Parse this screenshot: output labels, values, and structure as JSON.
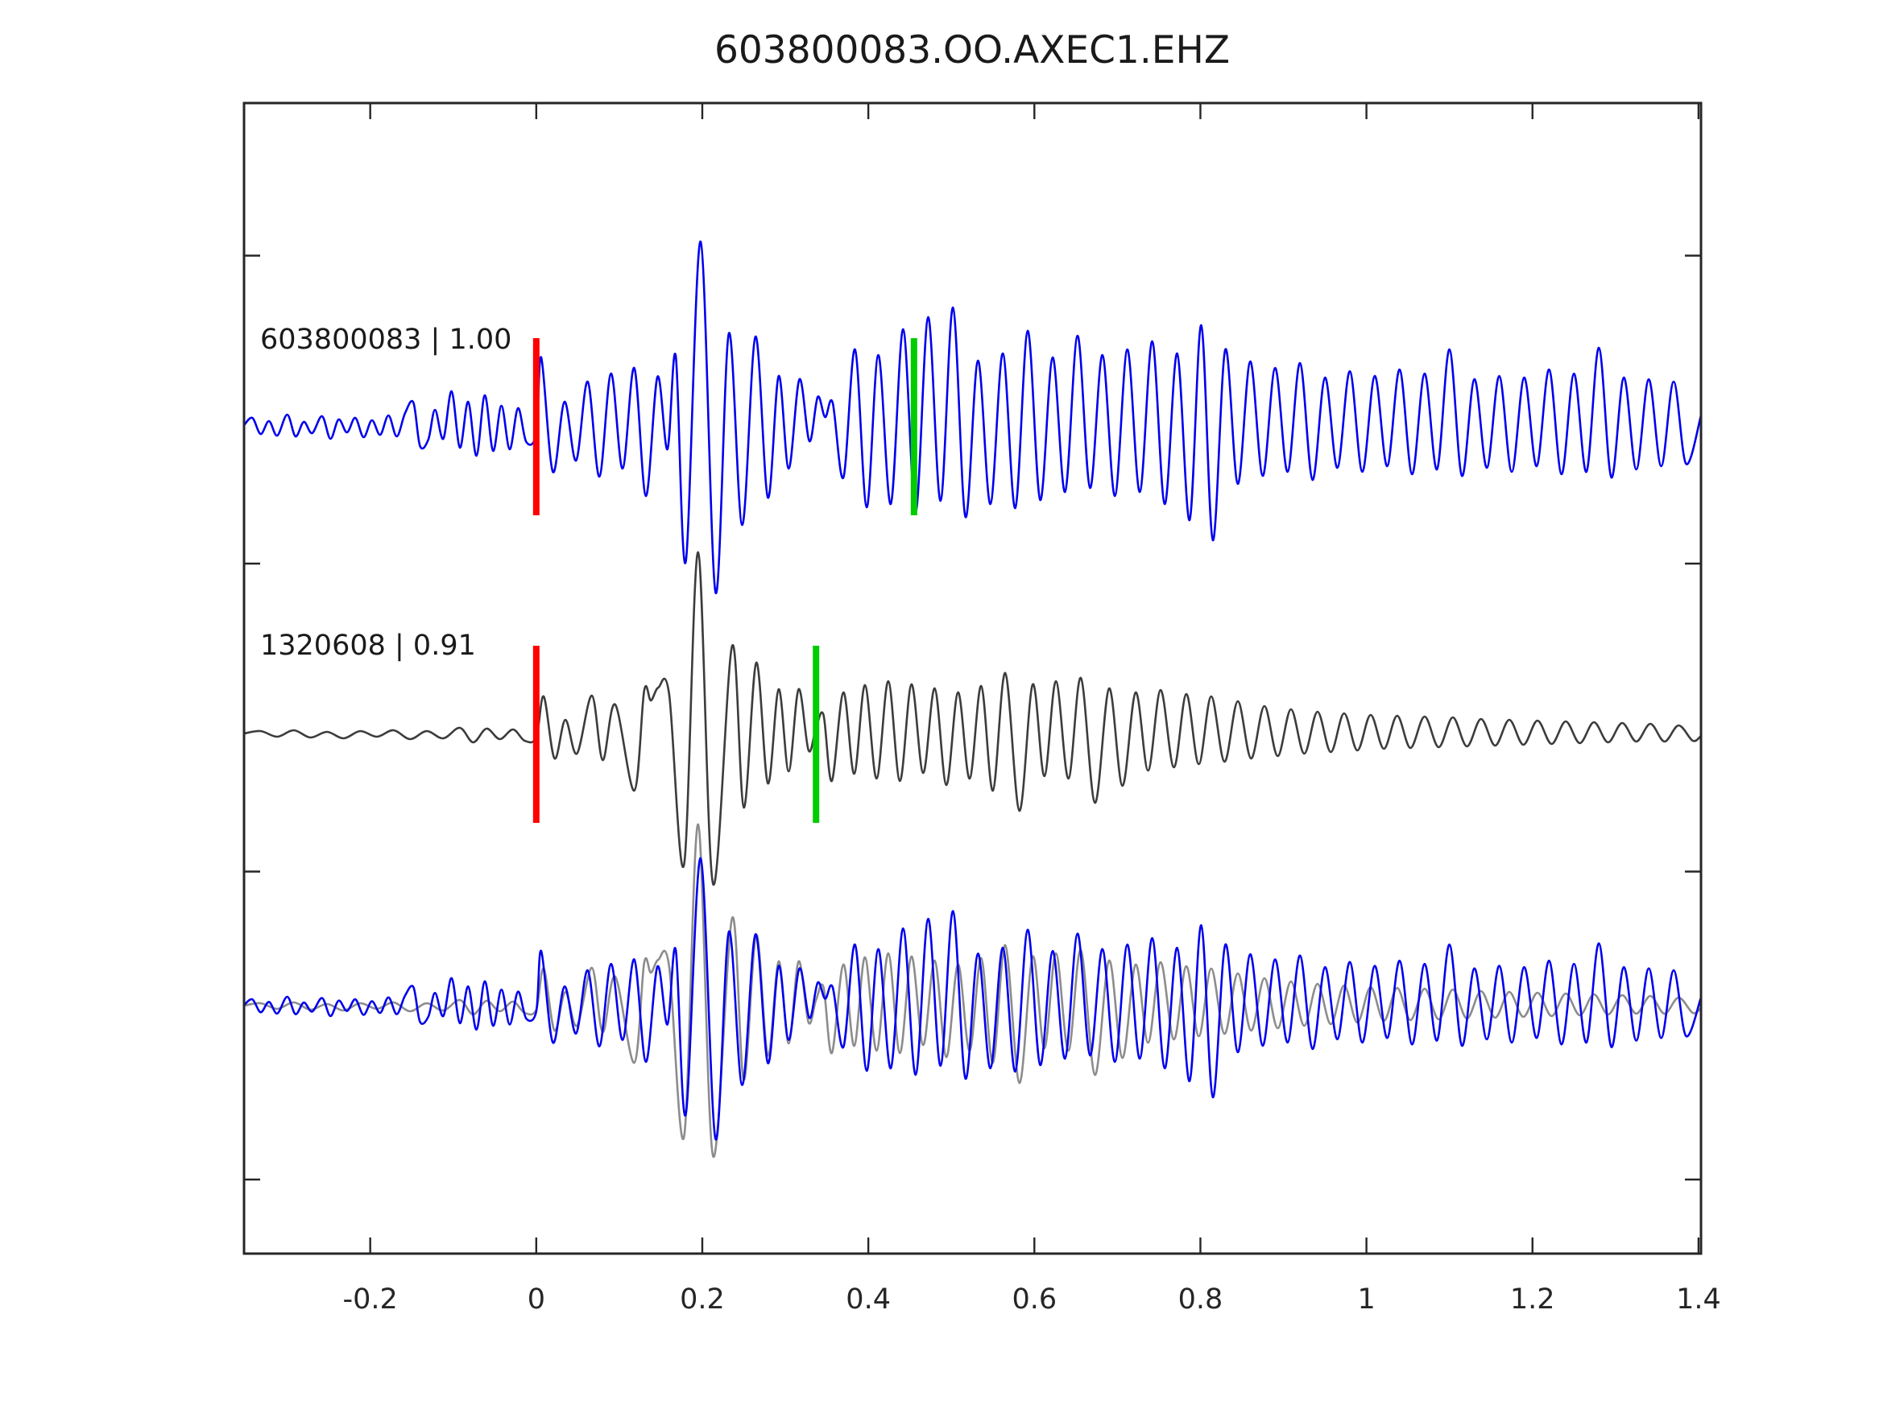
{
  "title": "603800083.OO.AXEC1.EHZ",
  "chart_data": {
    "type": "line",
    "title": "603800083.OO.AXEC1.EHZ",
    "xlabel": "",
    "ylabel": "",
    "xlim": [
      -0.352,
      1.403
    ],
    "x_ticks": [
      -0.2,
      0,
      0.2,
      0.4,
      0.6,
      0.8,
      1,
      1.2,
      1.4
    ],
    "x_tick_labels": [
      "-0.2",
      "0",
      "0.2",
      "0.4",
      "0.6",
      "0.8",
      "1",
      "1.2",
      "1.4"
    ],
    "y_tick_labels": [],
    "y_ticks_unlabeled_count": 4,
    "grid": false,
    "legend": "none",
    "tick_direction": "in",
    "background_color": "#ffffff",
    "axis_color": "#262626",
    "panels": [
      {
        "name": "template-panel",
        "label": "603800083 | 1.00",
        "trace": "template",
        "trace_color": "#0000ee",
        "scale": 1.0,
        "picks": [
          {
            "name": "red-pick",
            "x": 0.0,
            "color": "#ff0000"
          },
          {
            "name": "green-pick",
            "x": 0.455,
            "color": "#00cc00"
          }
        ]
      },
      {
        "name": "detection-panel",
        "label": "1320608 | 0.91",
        "trace": "detection",
        "trace_color": "#3c3c3c",
        "scale": 1.0,
        "picks": [
          {
            "name": "red-pick",
            "x": 0.0,
            "color": "#ff0000"
          },
          {
            "name": "green-pick",
            "x": 0.337,
            "color": "#00cc00"
          }
        ]
      },
      {
        "name": "overlay-panel",
        "label": "",
        "overlay": [
          {
            "trace": "detection",
            "color": "#8c8c8c",
            "scale": 1.0
          },
          {
            "trace": "template",
            "color": "#0000ee",
            "scale": 0.8
          }
        ],
        "picks": []
      }
    ],
    "series": [
      {
        "name": "template",
        "points": [
          [
            -0.352,
            2
          ],
          [
            -0.342,
            11
          ],
          [
            -0.332,
            -9
          ],
          [
            -0.322,
            7
          ],
          [
            -0.312,
            -11
          ],
          [
            -0.3,
            15
          ],
          [
            -0.29,
            -12
          ],
          [
            -0.28,
            6
          ],
          [
            -0.27,
            -8
          ],
          [
            -0.258,
            13
          ],
          [
            -0.248,
            -15
          ],
          [
            -0.238,
            9
          ],
          [
            -0.228,
            -7
          ],
          [
            -0.218,
            11
          ],
          [
            -0.208,
            -13
          ],
          [
            -0.198,
            8
          ],
          [
            -0.188,
            -10
          ],
          [
            -0.178,
            14
          ],
          [
            -0.168,
            -12
          ],
          [
            -0.158,
            17
          ],
          [
            -0.148,
            30
          ],
          [
            -0.14,
            -24
          ],
          [
            -0.13,
            -16
          ],
          [
            -0.122,
            21
          ],
          [
            -0.112,
            -15
          ],
          [
            -0.102,
            44
          ],
          [
            -0.092,
            -26
          ],
          [
            -0.082,
            31
          ],
          [
            -0.072,
            -36
          ],
          [
            -0.062,
            39
          ],
          [
            -0.052,
            -30
          ],
          [
            -0.042,
            26
          ],
          [
            -0.032,
            -28
          ],
          [
            -0.022,
            23
          ],
          [
            -0.012,
            -19
          ],
          [
            0,
            -8
          ],
          [
            0.006,
            86
          ],
          [
            0.02,
            -56
          ],
          [
            0.034,
            31
          ],
          [
            0.048,
            -42
          ],
          [
            0.062,
            56
          ],
          [
            0.076,
            -62
          ],
          [
            0.09,
            66
          ],
          [
            0.104,
            -52
          ],
          [
            0.118,
            73
          ],
          [
            0.132,
            -86
          ],
          [
            0.146,
            62
          ],
          [
            0.158,
            -28
          ],
          [
            0.168,
            88
          ],
          [
            0.18,
            -168
          ],
          [
            0.198,
            230
          ],
          [
            0.216,
            -206
          ],
          [
            0.232,
            116
          ],
          [
            0.248,
            -122
          ],
          [
            0.264,
            112
          ],
          [
            0.279,
            -88
          ],
          [
            0.292,
            63
          ],
          [
            0.304,
            -52
          ],
          [
            0.317,
            59
          ],
          [
            0.329,
            -18
          ],
          [
            0.339,
            37
          ],
          [
            0.348,
            12
          ],
          [
            0.357,
            30
          ],
          [
            0.37,
            -63
          ],
          [
            0.384,
            96
          ],
          [
            0.398,
            -100
          ],
          [
            0.412,
            89
          ],
          [
            0.427,
            -96
          ],
          [
            0.442,
            121
          ],
          [
            0.457,
            -106
          ],
          [
            0.472,
            136
          ],
          [
            0.487,
            -92
          ],
          [
            0.502,
            148
          ],
          [
            0.517,
            -112
          ],
          [
            0.532,
            82
          ],
          [
            0.547,
            -96
          ],
          [
            0.562,
            91
          ],
          [
            0.577,
            -101
          ],
          [
            0.592,
            119
          ],
          [
            0.607,
            -91
          ],
          [
            0.622,
            86
          ],
          [
            0.637,
            -81
          ],
          [
            0.652,
            113
          ],
          [
            0.667,
            -76
          ],
          [
            0.682,
            89
          ],
          [
            0.697,
            -86
          ],
          [
            0.712,
            96
          ],
          [
            0.727,
            -81
          ],
          [
            0.742,
            106
          ],
          [
            0.757,
            -96
          ],
          [
            0.772,
            91
          ],
          [
            0.787,
            -116
          ],
          [
            0.801,
            126
          ],
          [
            0.815,
            -141
          ],
          [
            0.83,
            96
          ],
          [
            0.845,
            -71
          ],
          [
            0.86,
            81
          ],
          [
            0.875,
            -61
          ],
          [
            0.89,
            73
          ],
          [
            0.905,
            -56
          ],
          [
            0.92,
            79
          ],
          [
            0.935,
            -66
          ],
          [
            0.95,
            61
          ],
          [
            0.965,
            -51
          ],
          [
            0.98,
            69
          ],
          [
            0.995,
            -56
          ],
          [
            1.01,
            63
          ],
          [
            1.025,
            -49
          ],
          [
            1.04,
            71
          ],
          [
            1.055,
            -59
          ],
          [
            1.07,
            66
          ],
          [
            1.085,
            -53
          ],
          [
            1.1,
            96
          ],
          [
            1.115,
            -61
          ],
          [
            1.13,
            59
          ],
          [
            1.145,
            -51
          ],
          [
            1.16,
            63
          ],
          [
            1.175,
            -56
          ],
          [
            1.19,
            61
          ],
          [
            1.205,
            -49
          ],
          [
            1.22,
            71
          ],
          [
            1.235,
            -59
          ],
          [
            1.25,
            66
          ],
          [
            1.265,
            -56
          ],
          [
            1.28,
            98
          ],
          [
            1.295,
            -63
          ],
          [
            1.31,
            61
          ],
          [
            1.325,
            -53
          ],
          [
            1.34,
            59
          ],
          [
            1.355,
            -49
          ],
          [
            1.37,
            56
          ],
          [
            1.385,
            -46
          ],
          [
            1.403,
            14
          ]
        ]
      },
      {
        "name": "detection",
        "points": [
          [
            -0.352,
            1
          ],
          [
            -0.332,
            4
          ],
          [
            -0.312,
            -3
          ],
          [
            -0.292,
            5
          ],
          [
            -0.272,
            -4
          ],
          [
            -0.252,
            3
          ],
          [
            -0.232,
            -5
          ],
          [
            -0.212,
            4
          ],
          [
            -0.192,
            -3
          ],
          [
            -0.172,
            5
          ],
          [
            -0.152,
            -6
          ],
          [
            -0.132,
            4
          ],
          [
            -0.112,
            -5
          ],
          [
            -0.092,
            8
          ],
          [
            -0.076,
            -10
          ],
          [
            -0.06,
            7
          ],
          [
            -0.044,
            -6
          ],
          [
            -0.028,
            6
          ],
          [
            -0.014,
            -8
          ],
          [
            0,
            -4
          ],
          [
            0.009,
            47
          ],
          [
            0.022,
            -30
          ],
          [
            0.035,
            18
          ],
          [
            0.049,
            -24
          ],
          [
            0.067,
            48
          ],
          [
            0.08,
            -32
          ],
          [
            0.095,
            37
          ],
          [
            0.118,
            -70
          ],
          [
            0.13,
            54
          ],
          [
            0.138,
            42
          ],
          [
            0.147,
            58
          ],
          [
            0.16,
            50
          ],
          [
            0.178,
            -162
          ],
          [
            0.195,
            226
          ],
          [
            0.213,
            -186
          ],
          [
            0.236,
            110
          ],
          [
            0.25,
            -91
          ],
          [
            0.265,
            89
          ],
          [
            0.279,
            -61
          ],
          [
            0.292,
            56
          ],
          [
            0.304,
            -46
          ],
          [
            0.316,
            56
          ],
          [
            0.328,
            -20
          ],
          [
            0.337,
            8
          ],
          [
            0.346,
            24
          ],
          [
            0.356,
            -58
          ],
          [
            0.37,
            52
          ],
          [
            0.383,
            -49
          ],
          [
            0.396,
            61
          ],
          [
            0.41,
            -55
          ],
          [
            0.424,
            66
          ],
          [
            0.438,
            -58
          ],
          [
            0.452,
            62
          ],
          [
            0.466,
            -48
          ],
          [
            0.48,
            57
          ],
          [
            0.494,
            -63
          ],
          [
            0.508,
            52
          ],
          [
            0.522,
            -55
          ],
          [
            0.536,
            60
          ],
          [
            0.55,
            -70
          ],
          [
            0.565,
            76
          ],
          [
            0.582,
            -95
          ],
          [
            0.598,
            62
          ],
          [
            0.612,
            -52
          ],
          [
            0.626,
            66
          ],
          [
            0.641,
            -55
          ],
          [
            0.656,
            70
          ],
          [
            0.673,
            -85
          ],
          [
            0.69,
            57
          ],
          [
            0.706,
            -64
          ],
          [
            0.722,
            52
          ],
          [
            0.737,
            -45
          ],
          [
            0.752,
            55
          ],
          [
            0.768,
            -41
          ],
          [
            0.783,
            50
          ],
          [
            0.798,
            -37
          ],
          [
            0.813,
            47
          ],
          [
            0.829,
            -34
          ],
          [
            0.845,
            41
          ],
          [
            0.861,
            -30
          ],
          [
            0.877,
            35
          ],
          [
            0.893,
            -27
          ],
          [
            0.909,
            31
          ],
          [
            0.925,
            -24
          ],
          [
            0.941,
            28
          ],
          [
            0.957,
            -22
          ],
          [
            0.973,
            26
          ],
          [
            0.989,
            -20
          ],
          [
            1.005,
            24
          ],
          [
            1.021,
            -18
          ],
          [
            1.037,
            23
          ],
          [
            1.053,
            -17
          ],
          [
            1.07,
            22
          ],
          [
            1.087,
            -16
          ],
          [
            1.104,
            21
          ],
          [
            1.121,
            -15
          ],
          [
            1.138,
            19
          ],
          [
            1.155,
            -14
          ],
          [
            1.172,
            18
          ],
          [
            1.189,
            -13
          ],
          [
            1.206,
            17
          ],
          [
            1.223,
            -12
          ],
          [
            1.24,
            16
          ],
          [
            1.257,
            -11
          ],
          [
            1.274,
            15
          ],
          [
            1.291,
            -10
          ],
          [
            1.308,
            14
          ],
          [
            1.325,
            -9
          ],
          [
            1.342,
            13
          ],
          [
            1.359,
            -9
          ],
          [
            1.376,
            11
          ],
          [
            1.393,
            -8
          ],
          [
            1.403,
            -2
          ]
        ]
      }
    ]
  }
}
